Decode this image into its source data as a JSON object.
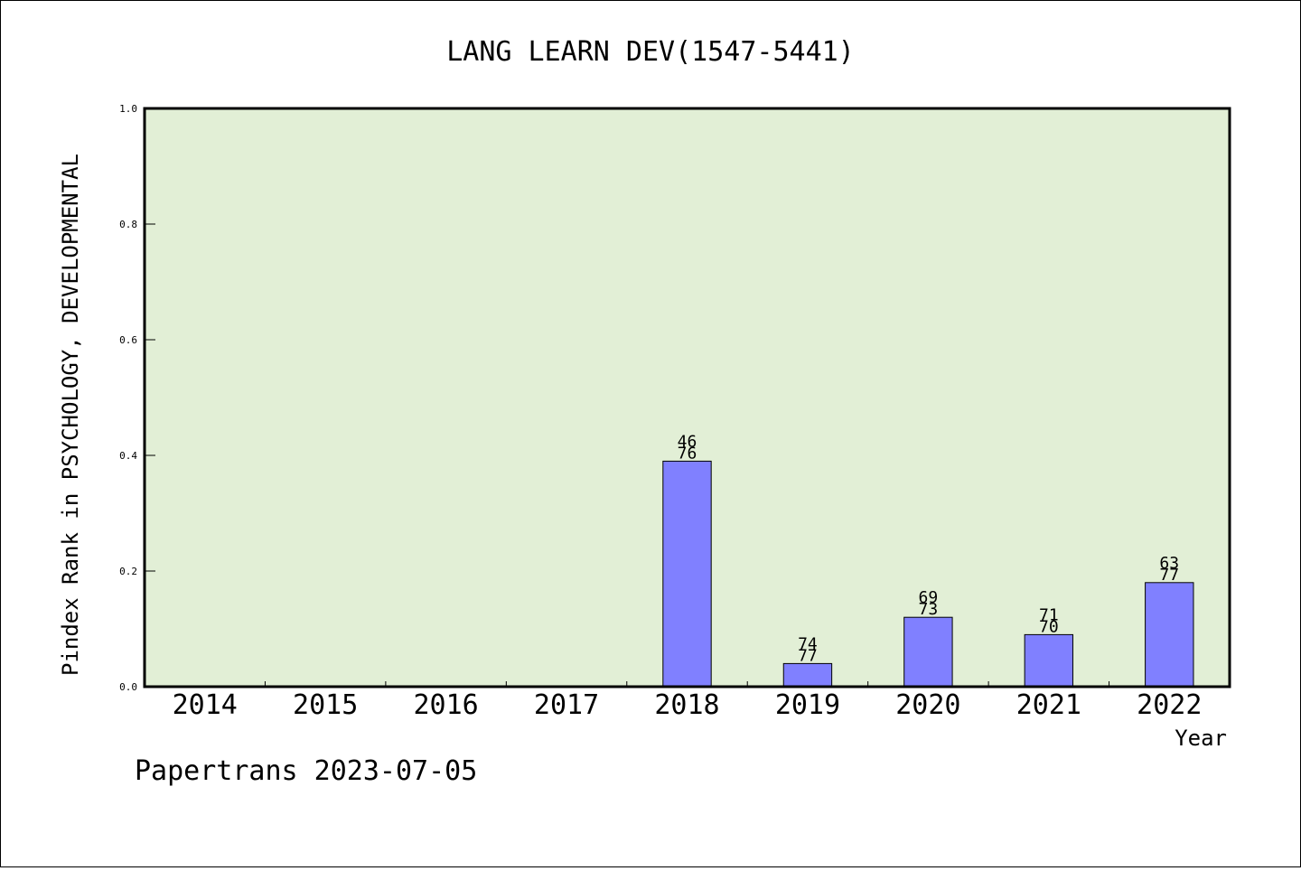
{
  "chart_data": {
    "type": "bar",
    "title": "LANG LEARN DEV(1547-5441)",
    "xlabel": "Year",
    "ylabel": "Pindex Rank in PSYCHOLOGY, DEVELOPMENTAL",
    "categories": [
      "2014",
      "2015",
      "2016",
      "2017",
      "2018",
      "2019",
      "2020",
      "2021",
      "2022"
    ],
    "values": [
      null,
      null,
      null,
      null,
      0.39,
      0.04,
      0.12,
      0.09,
      0.18
    ],
    "bar_labels": [
      null,
      null,
      null,
      null,
      [
        "46",
        "76"
      ],
      [
        "74",
        "77"
      ],
      [
        "69",
        "73"
      ],
      [
        "71",
        "70"
      ],
      [
        "63",
        "77"
      ]
    ],
    "ylim": [
      0,
      1.0
    ],
    "yticks": [
      "0.0",
      "0.2",
      "0.4",
      "0.6",
      "0.8",
      "1.0"
    ],
    "grid": false,
    "colors": {
      "plot_background": "#e2efd6",
      "bar_fill": "#8080ff",
      "bar_stroke": "#000000"
    }
  },
  "footer": {
    "text": "Papertrans 2023-07-05"
  }
}
